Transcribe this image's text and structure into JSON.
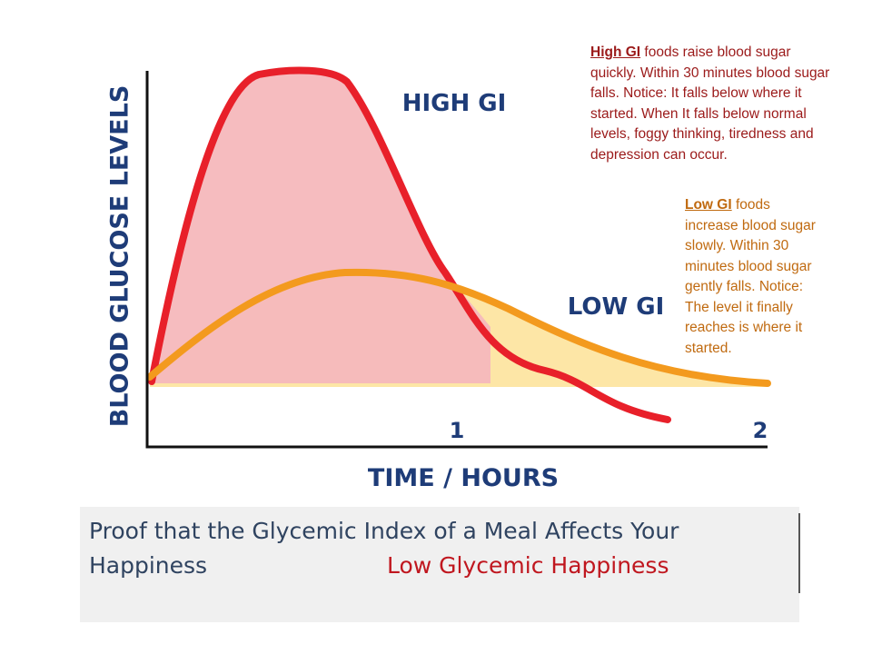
{
  "chart": {
    "y_axis_label": "BLOOD GLUCOSE LEVELS",
    "x_axis_label": "TIME / HOURS",
    "x_ticks": [
      "1",
      "2"
    ],
    "curve_labels": [
      "HIGH GI",
      "LOW GI"
    ]
  },
  "notes": [
    {
      "lead": "High GI",
      "text": " foods raise blood sugar quickly. Within 30 minutes blood sugar falls. Notice: It falls below where it started. When It falls below normal levels, foggy thinking, tiredness and depression can occur."
    },
    {
      "lead": "Low GI",
      "text": " foods increase blood sugar slowly. Within 30 minutes blood sugar gently falls. Notice: The level it finally reaches is where it started."
    }
  ],
  "caption": {
    "line1": "Proof that the Glycemic Index of a Meal Affects Your",
    "line2": "Happiness",
    "highlight": "Low Glycemic Happiness"
  }
}
